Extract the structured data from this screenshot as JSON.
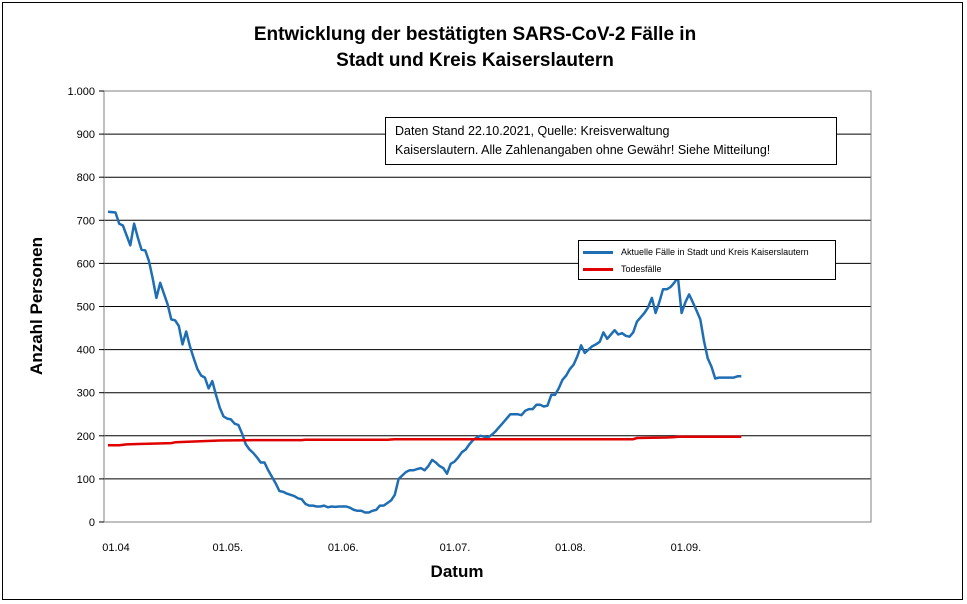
{
  "chart_data": {
    "type": "line",
    "title_line1": "Entwicklung der bestätigten SARS-CoV-2 Fälle in",
    "title_line2": "Stadt und Kreis Kaiserslautern",
    "xlabel": "Datum",
    "ylabel": "Anzahl Personen",
    "ylim": [
      0,
      1000
    ],
    "xlim": [
      0,
      175
    ],
    "y_ticks": [
      {
        "value": 0,
        "label": "0"
      },
      {
        "value": 100,
        "label": "100"
      },
      {
        "value": 200,
        "label": "200"
      },
      {
        "value": 300,
        "label": "300"
      },
      {
        "value": 400,
        "label": "400"
      },
      {
        "value": 500,
        "label": "500"
      },
      {
        "value": 600,
        "label": "600"
      },
      {
        "value": 700,
        "label": "700"
      },
      {
        "value": 800,
        "label": "800"
      },
      {
        "value": 900,
        "label": "900"
      },
      {
        "value": 1000,
        "label": "1.000"
      }
    ],
    "x_ticks": [
      {
        "value": 0,
        "label": "01.04"
      },
      {
        "value": 30,
        "label": "01.05."
      },
      {
        "value": 61,
        "label": "01.06."
      },
      {
        "value": 91,
        "label": "01.07."
      },
      {
        "value": 122,
        "label": "01.08."
      },
      {
        "value": 153,
        "label": "01.09."
      }
    ],
    "grid": true,
    "legend_position": "right",
    "annotation": [
      "Daten Stand 22.10.2021, Quelle: Kreisverwaltung",
      "Kaiserslautern. Alle Zahlenangaben ohne Gewähr! Siehe Mitteilung!"
    ],
    "series": [
      {
        "name": "Aktuelle Fälle in Stadt und Kreis Kaiserslautern",
        "color": "#1f6eb4",
        "points": [
          [
            0,
            720
          ],
          [
            2,
            718
          ],
          [
            3,
            692
          ],
          [
            4,
            688
          ],
          [
            6,
            642
          ],
          [
            7,
            692
          ],
          [
            8,
            660
          ],
          [
            9,
            632
          ],
          [
            10,
            630
          ],
          [
            11,
            605
          ],
          [
            12,
            565
          ],
          [
            13,
            520
          ],
          [
            14,
            555
          ],
          [
            15,
            530
          ],
          [
            16,
            505
          ],
          [
            17,
            470
          ],
          [
            18,
            468
          ],
          [
            19,
            455
          ],
          [
            20,
            412
          ],
          [
            21,
            442
          ],
          [
            22,
            408
          ],
          [
            23,
            380
          ],
          [
            24,
            355
          ],
          [
            25,
            340
          ],
          [
            26,
            335
          ],
          [
            27,
            310
          ],
          [
            28,
            327
          ],
          [
            29,
            295
          ],
          [
            30,
            265
          ],
          [
            31,
            245
          ],
          [
            32,
            240
          ],
          [
            33,
            238
          ],
          [
            34,
            228
          ],
          [
            35,
            225
          ],
          [
            36,
            205
          ],
          [
            37,
            180
          ],
          [
            38,
            168
          ],
          [
            39,
            160
          ],
          [
            40,
            150
          ],
          [
            41,
            138
          ],
          [
            42,
            138
          ],
          [
            43,
            120
          ],
          [
            44,
            105
          ],
          [
            45,
            90
          ],
          [
            46,
            72
          ],
          [
            47,
            70
          ],
          [
            48,
            66
          ],
          [
            49,
            63
          ],
          [
            50,
            60
          ],
          [
            51,
            55
          ],
          [
            52,
            53
          ],
          [
            53,
            42
          ],
          [
            54,
            38
          ],
          [
            55,
            38
          ],
          [
            56,
            36
          ],
          [
            57,
            36
          ],
          [
            58,
            38
          ],
          [
            59,
            34
          ],
          [
            60,
            36
          ],
          [
            61,
            35
          ],
          [
            62,
            36
          ],
          [
            63,
            36
          ],
          [
            64,
            36
          ],
          [
            65,
            33
          ],
          [
            66,
            28
          ],
          [
            67,
            26
          ],
          [
            68,
            26
          ],
          [
            69,
            22
          ],
          [
            70,
            22
          ],
          [
            71,
            26
          ],
          [
            72,
            28
          ],
          [
            73,
            38
          ],
          [
            74,
            38
          ],
          [
            75,
            44
          ],
          [
            76,
            50
          ],
          [
            77,
            63
          ],
          [
            78,
            100
          ],
          [
            79,
            108
          ],
          [
            80,
            116
          ],
          [
            81,
            120
          ],
          [
            82,
            120
          ],
          [
            83,
            123
          ],
          [
            84,
            125
          ],
          [
            85,
            120
          ],
          [
            86,
            130
          ],
          [
            87,
            144
          ],
          [
            88,
            138
          ],
          [
            89,
            130
          ],
          [
            90,
            125
          ],
          [
            91,
            112
          ],
          [
            92,
            135
          ],
          [
            93,
            140
          ],
          [
            94,
            150
          ],
          [
            95,
            162
          ],
          [
            96,
            168
          ],
          [
            97,
            180
          ],
          [
            98,
            190
          ],
          [
            99,
            196
          ],
          [
            100,
            200
          ],
          [
            101,
            198
          ],
          [
            102,
            196
          ],
          [
            103,
            202
          ],
          [
            104,
            210
          ],
          [
            105,
            220
          ],
          [
            106,
            230
          ],
          [
            107,
            240
          ],
          [
            108,
            250
          ],
          [
            109,
            250
          ],
          [
            110,
            250
          ],
          [
            111,
            248
          ],
          [
            112,
            258
          ],
          [
            113,
            262
          ],
          [
            114,
            262
          ],
          [
            115,
            272
          ],
          [
            116,
            272
          ],
          [
            117,
            268
          ],
          [
            118,
            270
          ],
          [
            119,
            295
          ],
          [
            120,
            295
          ],
          [
            121,
            310
          ],
          [
            122,
            330
          ],
          [
            123,
            340
          ],
          [
            124,
            355
          ],
          [
            125,
            365
          ],
          [
            126,
            385
          ],
          [
            127,
            410
          ],
          [
            128,
            392
          ],
          [
            129,
            400
          ],
          [
            130,
            408
          ],
          [
            131,
            412
          ],
          [
            132,
            418
          ],
          [
            133,
            440
          ],
          [
            134,
            425
          ],
          [
            135,
            435
          ],
          [
            136,
            445
          ],
          [
            137,
            435
          ],
          [
            138,
            438
          ],
          [
            139,
            432
          ],
          [
            140,
            430
          ],
          [
            141,
            440
          ],
          [
            142,
            465
          ],
          [
            143,
            475
          ],
          [
            144,
            485
          ],
          [
            145,
            498
          ],
          [
            146,
            520
          ],
          [
            147,
            485
          ],
          [
            148,
            510
          ],
          [
            149,
            540
          ],
          [
            150,
            540
          ],
          [
            151,
            545
          ],
          [
            152,
            555
          ],
          [
            153,
            568
          ],
          [
            154,
            485
          ],
          [
            155,
            510
          ],
          [
            156,
            528
          ],
          [
            157,
            510
          ],
          [
            158,
            490
          ],
          [
            159,
            470
          ],
          [
            160,
            420
          ],
          [
            161,
            380
          ],
          [
            162,
            360
          ],
          [
            163,
            333
          ],
          [
            164,
            335
          ],
          [
            165,
            335
          ],
          [
            166,
            335
          ],
          [
            167,
            335
          ],
          [
            168,
            335
          ],
          [
            169,
            338
          ],
          [
            170,
            338
          ]
        ]
      },
      {
        "name": "Todesfälle",
        "color": "#e00000",
        "points": [
          [
            0,
            178
          ],
          [
            3,
            178
          ],
          [
            5,
            180
          ],
          [
            8,
            181
          ],
          [
            12,
            182
          ],
          [
            17,
            183
          ],
          [
            18,
            185
          ],
          [
            24,
            187
          ],
          [
            30,
            189
          ],
          [
            40,
            190
          ],
          [
            52,
            190
          ],
          [
            53,
            191
          ],
          [
            75,
            191
          ],
          [
            77,
            192
          ],
          [
            141,
            192
          ],
          [
            142,
            195
          ],
          [
            150,
            196
          ],
          [
            152,
            197
          ],
          [
            153,
            198
          ],
          [
            170,
            198
          ]
        ]
      }
    ]
  }
}
